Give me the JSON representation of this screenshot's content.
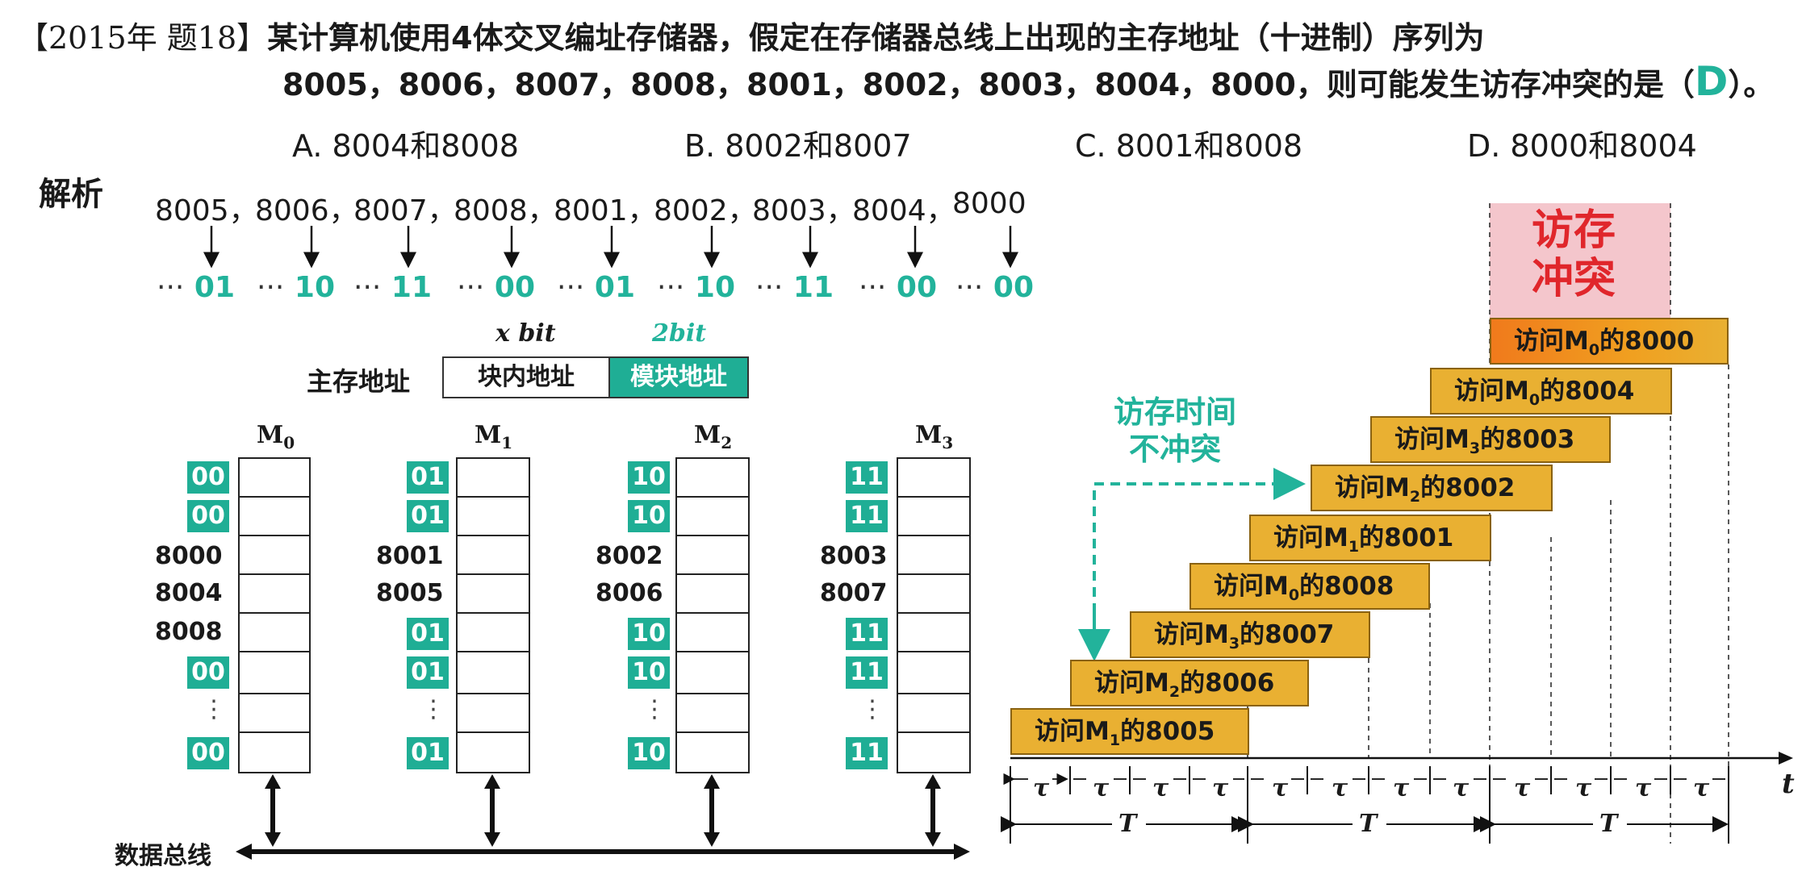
{
  "question": {
    "year_tag": "【2015年 题18】",
    "line1": "某计算机使用4体交叉编址存储器，假定在存储器总线上出现的主存地址（十进制）序列为",
    "line2": "8005，8006，8007，8008，8001，8002，8003，8004，8000，则可能发生访存冲突的是（",
    "answer": "D",
    "line2_end": "）。"
  },
  "options": [
    "A. 8004和8008",
    "B. 8002和8007",
    "C. 8001和8008",
    "D. 8000和8004"
  ],
  "analysis_label": "解析",
  "address_sequence": [
    "8005",
    "8006",
    "8007",
    "8008",
    "8001",
    "8002",
    "8003",
    "8004",
    "8000"
  ],
  "separator": "，",
  "ellipsis": "···",
  "low_bits": [
    "01",
    "10",
    "11",
    "00",
    "01",
    "10",
    "11",
    "00",
    "00"
  ],
  "address_format": {
    "label": "主存地址",
    "x_bit_label": "x bit",
    "two_bit_label": "2bit",
    "block_field": "块内地址",
    "module_field": "模块地址"
  },
  "modules": [
    {
      "name": "M",
      "sub": "0",
      "badge": "00",
      "addresses": [
        "8000",
        "8004",
        "8008"
      ]
    },
    {
      "name": "M",
      "sub": "1",
      "badge": "01",
      "addresses": [
        "8001",
        "8005"
      ]
    },
    {
      "name": "M",
      "sub": "2",
      "badge": "10",
      "addresses": [
        "8002",
        "8006"
      ]
    },
    {
      "name": "M",
      "sub": "3",
      "badge": "11",
      "addresses": [
        "8003",
        "8007"
      ]
    }
  ],
  "vertical_ellipsis": "⋮",
  "bus_label": "数据总线",
  "timing": {
    "conflict_label_1": "访存",
    "conflict_label_2": "冲突",
    "no_conflict_1": "访存时间",
    "no_conflict_2": "不冲突",
    "bars": [
      {
        "pre": "访问M",
        "sub": "1",
        "post": "的8005"
      },
      {
        "pre": "访问M",
        "sub": "2",
        "post": "的8006"
      },
      {
        "pre": "访问M",
        "sub": "3",
        "post": "的8007"
      },
      {
        "pre": "访问M",
        "sub": "0",
        "post": "的8008"
      },
      {
        "pre": "访问M",
        "sub": "1",
        "post": "的8001"
      },
      {
        "pre": "访问M",
        "sub": "2",
        "post": "的8002"
      },
      {
        "pre": "访问M",
        "sub": "3",
        "post": "的8003"
      },
      {
        "pre": "访问M",
        "sub": "0",
        "post": "的8004"
      },
      {
        "pre": "访问M",
        "sub": "0",
        "post": "的8000"
      }
    ],
    "tau": "τ",
    "period": "T",
    "axis": "t"
  },
  "colors": {
    "accent": "#22b39b",
    "bar": "#e9b032",
    "conflict": "#f4c6cc",
    "conflict_text": "#e0262b"
  }
}
